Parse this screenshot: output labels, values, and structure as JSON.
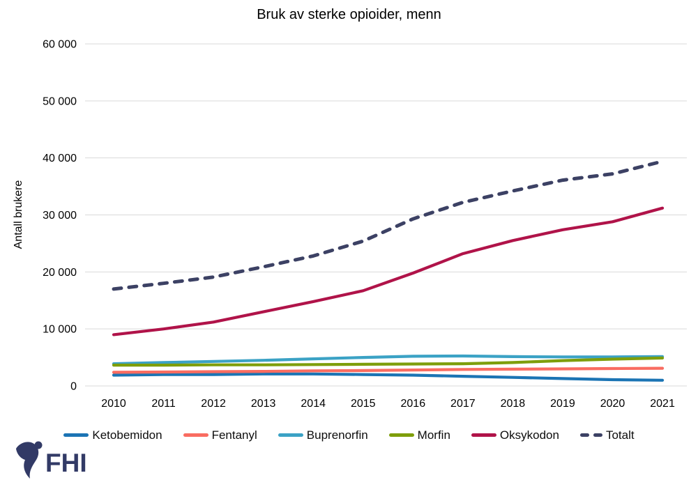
{
  "chart_data": {
    "type": "line",
    "title": "Bruk av sterke opioider, menn",
    "xlabel": "",
    "ylabel": "Antall brukere",
    "ylim": [
      0,
      60000
    ],
    "ytick_interval": 10000,
    "grid": "horizontal-only",
    "legend_position": "bottom",
    "x": [
      2010,
      2011,
      2012,
      2013,
      2014,
      2015,
      2016,
      2017,
      2018,
      2019,
      2020,
      2021
    ],
    "series": [
      {
        "name": "Ketobemidon",
        "color": "#1B74B4",
        "dashed": false,
        "values": [
          1900,
          2000,
          2000,
          2100,
          2100,
          2000,
          1900,
          1700,
          1500,
          1300,
          1100,
          1000
        ]
      },
      {
        "name": "Fentanyl",
        "color": "#F96C61",
        "dashed": false,
        "values": [
          2400,
          2450,
          2500,
          2550,
          2650,
          2700,
          2800,
          2900,
          2950,
          3000,
          3050,
          3100
        ]
      },
      {
        "name": "Buprenorfin",
        "color": "#3BA2C5",
        "dashed": false,
        "values": [
          3900,
          4100,
          4300,
          4500,
          4750,
          5000,
          5200,
          5250,
          5150,
          5100,
          5100,
          5150
        ]
      },
      {
        "name": "Morfin",
        "color": "#7E9E0B",
        "dashed": false,
        "values": [
          3650,
          3650,
          3700,
          3700,
          3750,
          3800,
          3850,
          3900,
          4100,
          4450,
          4700,
          4900
        ]
      },
      {
        "name": "Oksykodon",
        "color": "#B01349",
        "dashed": false,
        "values": [
          9000,
          10000,
          11200,
          13000,
          14800,
          16700,
          19800,
          23200,
          25500,
          27400,
          28800,
          31200
        ]
      },
      {
        "name": "Totalt",
        "color": "#3C4164",
        "dashed": true,
        "values": [
          17000,
          18000,
          19100,
          20900,
          22800,
          25400,
          29300,
          32200,
          34200,
          36100,
          37200,
          39400
        ]
      }
    ]
  },
  "logo": {
    "text": "FHI"
  },
  "colors": {
    "background": "#FFFFFF",
    "grid": "#D9D9D9",
    "axis_text": "#000000",
    "logo_navy": "#323A66"
  }
}
